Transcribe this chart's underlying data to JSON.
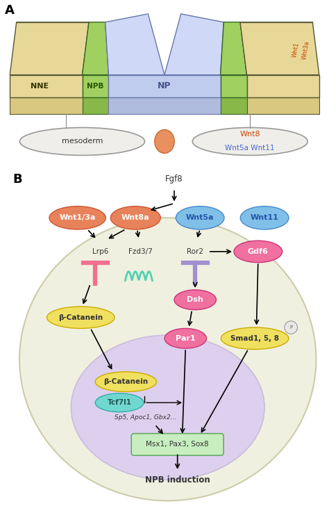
{
  "panel_A_label": "A",
  "panel_B_label": "B",
  "bg_color": "#ffffff",
  "panel_A": {
    "NNE_color": "#e8d898",
    "NPB_color": "#90c060",
    "NP_color": "#c0ccee",
    "NP_label": "NP",
    "NNE_label": "NNE",
    "NPB_label": "NPB",
    "mesoderm_label": "mesoderm",
    "Wnt1_label": "Wnt1",
    "Wnt3a_label": "Wnt3a",
    "Wnt1_color": "#cc4400",
    "Wnt3a_color": "#cc4400",
    "Wnt8_label": "Wnt8",
    "Wnt5a_label": "Wnt5a",
    "Wnt11_label": "Wnt11",
    "Wnt8_color": "#cc4400",
    "Wnt5a_color": "#4466cc",
    "Wnt11_color": "#4466cc"
  },
  "panel_B": {
    "Fgf8_label": "Fgf8",
    "Wnt1_3a_label": "Wnt1/3a",
    "Wnt8a_label": "Wnt8a",
    "Wnt5a_label": "Wnt5a",
    "Wnt11_label": "Wnt11",
    "Lrp6_label": "Lrp6",
    "Fzd37_label": "Fzd3/7",
    "Ror2_label": "Ror2",
    "Gdf6_label": "Gdf6",
    "Dsh_label": "Dsh",
    "Par1_label": "Par1",
    "Smad158_label": "Smad1, 5, 8",
    "betaCat_label": "β-Catanein",
    "betaCat2_label": "β-Catanein",
    "Tcf7l1_label": "Tcf7l1",
    "genes_label": "Sp5, Apoc1, Gbx2...",
    "Msx1_label": "Msx1, Pax3, Sox8",
    "NPB_label": "NPB induction",
    "orange_fc": "#e8825a",
    "orange_ec": "#cc5533",
    "blue_fc": "#80c0e8",
    "blue_ec": "#4488cc",
    "blue_tc": "#2255aa",
    "pink_fc": "#f070a0",
    "pink_ec": "#cc3377",
    "yellow_fc": "#f0e060",
    "yellow_ec": "#ccaa00",
    "green_fc": "#c8eec0",
    "green_ec": "#66aa66",
    "cyan_fc": "#70d8d0",
    "cyan_ec": "#33aaaa",
    "cyan_tc": "#225555",
    "lrp_color": "#f07090",
    "fzd_color": "#50d0b0",
    "ror_color": "#a090d0",
    "cell_fc": "#f0f0e0",
    "cell_ec": "#ccccaa",
    "nucleus_fc": "#ddd0ee",
    "nucleus_ec": "#ccbbdd"
  }
}
